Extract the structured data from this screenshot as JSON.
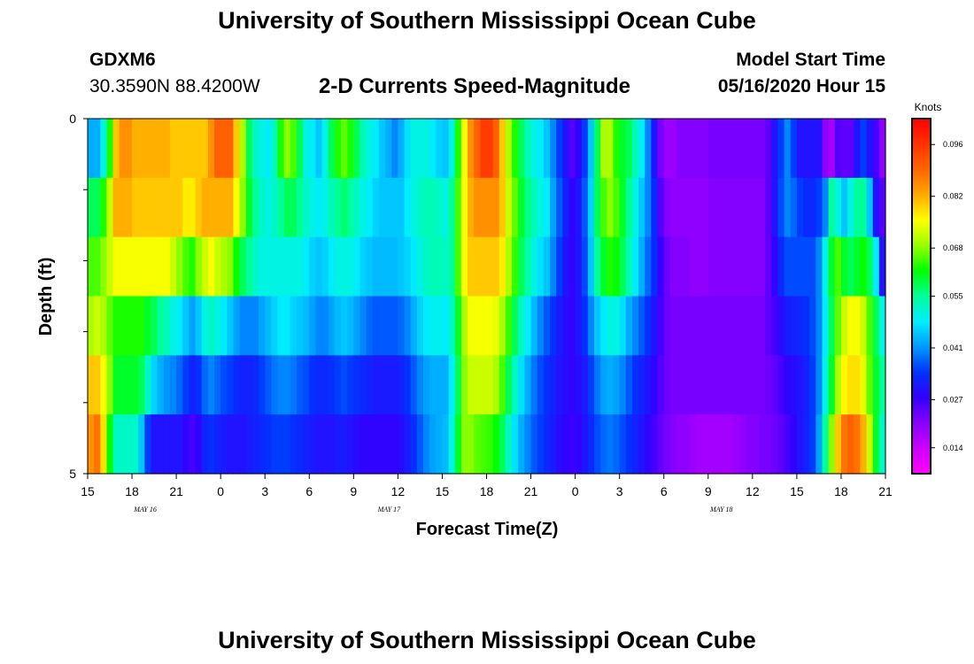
{
  "page": {
    "title_top": "University of Southern Mississippi Ocean Cube",
    "title_bottom": "University of Southern Mississippi Ocean Cube",
    "station_id": "GDXM6",
    "station_coords": "30.3590N 88.4200W",
    "chart_title": "2-D Currents Speed-Magnitude",
    "start_label": "Model Start Time",
    "start_value": "05/16/2020 Hour 15"
  },
  "chart_data": {
    "type": "heatmap",
    "title": "2-D Currents Speed-Magnitude",
    "xlabel": "Forecast Time(Z)",
    "ylabel": "Depth (ft)",
    "x_tick_labels": [
      "15",
      "18",
      "21",
      "0",
      "3",
      "6",
      "9",
      "12",
      "15",
      "18",
      "21",
      "0",
      "3",
      "6",
      "9",
      "12",
      "15",
      "18",
      "21"
    ],
    "x_date_labels": [
      "MAY 16",
      "MAY 17",
      "MAY 18"
    ],
    "x_date_label_tick_index": [
      1.3,
      6.8,
      14.3
    ],
    "xlim_hours": [
      0,
      54
    ],
    "y_tick_labels": [
      "0",
      "5"
    ],
    "ylim": [
      0,
      5
    ],
    "depth_levels": 5,
    "colorbar": {
      "unit": "Knots",
      "range": [
        0.007,
        0.103
      ],
      "labels": [
        "0.096",
        "0.082",
        "0.068",
        "0.055",
        "0.041",
        "0.027",
        "0.014"
      ],
      "label_values": [
        0.096,
        0.082,
        0.068,
        0.055,
        0.041,
        0.027,
        0.014
      ],
      "stops": [
        "#ff00ff",
        "#cc00ff",
        "#8800ff",
        "#3300ff",
        "#0033ff",
        "#0099ff",
        "#00eeff",
        "#00ff99",
        "#00ff00",
        "#99ff00",
        "#ffff00",
        "#ffaa00",
        "#ff6600",
        "#ff3300",
        "#ff0000"
      ]
    },
    "speed_knots": [
      [
        0.043,
        0.043,
        0.05,
        0.063,
        0.08,
        0.085,
        0.085,
        0.082,
        0.082,
        0.082,
        0.082,
        0.082,
        0.082,
        0.08,
        0.08,
        0.08,
        0.08,
        0.08,
        0.08,
        0.085,
        0.09,
        0.09,
        0.09,
        0.08,
        0.07,
        0.058,
        0.052,
        0.05,
        0.048,
        0.053,
        0.063,
        0.068,
        0.065,
        0.058,
        0.05,
        0.048,
        0.045,
        0.05,
        0.058,
        0.063,
        0.066,
        0.063,
        0.058,
        0.053,
        0.05,
        0.048,
        0.045,
        0.043,
        0.04,
        0.043,
        0.047,
        0.05,
        0.05,
        0.05,
        0.048,
        0.046,
        0.045,
        0.05,
        0.063,
        0.075,
        0.085,
        0.09,
        0.095,
        0.095,
        0.09,
        0.08,
        0.07,
        0.063,
        0.058,
        0.053,
        0.05,
        0.048,
        0.045,
        0.04,
        0.035,
        0.03,
        0.025,
        0.028,
        0.035,
        0.045,
        0.058,
        0.07,
        0.07,
        0.063,
        0.06,
        0.058,
        0.053,
        0.048,
        0.04,
        0.03,
        0.022,
        0.019,
        0.019,
        0.021,
        0.021,
        0.021,
        0.021,
        0.021,
        0.022,
        0.022,
        0.022,
        0.022,
        0.022,
        0.022,
        0.022,
        0.022,
        0.022,
        0.024,
        0.03,
        0.035,
        0.04,
        0.035,
        0.03,
        0.03,
        0.03,
        0.03,
        0.02,
        0.018,
        0.025,
        0.024,
        0.024,
        0.03,
        0.035,
        0.03,
        0.026,
        0.02
      ],
      [
        0.058,
        0.058,
        0.063,
        0.072,
        0.082,
        0.082,
        0.082,
        0.08,
        0.08,
        0.08,
        0.08,
        0.08,
        0.08,
        0.08,
        0.08,
        0.077,
        0.077,
        0.08,
        0.082,
        0.082,
        0.082,
        0.082,
        0.082,
        0.075,
        0.068,
        0.06,
        0.055,
        0.052,
        0.05,
        0.052,
        0.055,
        0.058,
        0.058,
        0.055,
        0.052,
        0.05,
        0.048,
        0.05,
        0.053,
        0.055,
        0.057,
        0.055,
        0.052,
        0.05,
        0.048,
        0.046,
        0.045,
        0.045,
        0.045,
        0.045,
        0.048,
        0.05,
        0.052,
        0.053,
        0.053,
        0.052,
        0.05,
        0.055,
        0.065,
        0.075,
        0.082,
        0.085,
        0.085,
        0.085,
        0.085,
        0.08,
        0.072,
        0.066,
        0.06,
        0.056,
        0.053,
        0.05,
        0.048,
        0.042,
        0.037,
        0.032,
        0.028,
        0.03,
        0.037,
        0.046,
        0.058,
        0.065,
        0.068,
        0.065,
        0.06,
        0.055,
        0.05,
        0.045,
        0.04,
        0.033,
        0.025,
        0.021,
        0.02,
        0.02,
        0.02,
        0.02,
        0.02,
        0.02,
        0.021,
        0.021,
        0.021,
        0.021,
        0.021,
        0.021,
        0.021,
        0.021,
        0.021,
        0.024,
        0.03,
        0.036,
        0.04,
        0.038,
        0.035,
        0.033,
        0.033,
        0.035,
        0.04,
        0.055,
        0.05,
        0.045,
        0.05,
        0.055,
        0.055,
        0.045,
        0.03,
        0.025
      ],
      [
        0.065,
        0.065,
        0.068,
        0.072,
        0.075,
        0.075,
        0.075,
        0.075,
        0.075,
        0.075,
        0.075,
        0.075,
        0.075,
        0.072,
        0.068,
        0.065,
        0.063,
        0.068,
        0.072,
        0.075,
        0.072,
        0.07,
        0.068,
        0.062,
        0.058,
        0.055,
        0.052,
        0.05,
        0.05,
        0.05,
        0.05,
        0.05,
        0.05,
        0.05,
        0.048,
        0.046,
        0.045,
        0.046,
        0.048,
        0.05,
        0.05,
        0.05,
        0.048,
        0.046,
        0.045,
        0.044,
        0.044,
        0.044,
        0.044,
        0.045,
        0.046,
        0.048,
        0.05,
        0.052,
        0.053,
        0.053,
        0.052,
        0.055,
        0.065,
        0.075,
        0.08,
        0.08,
        0.08,
        0.08,
        0.08,
        0.077,
        0.07,
        0.064,
        0.058,
        0.054,
        0.05,
        0.047,
        0.045,
        0.04,
        0.035,
        0.03,
        0.028,
        0.03,
        0.036,
        0.045,
        0.055,
        0.06,
        0.063,
        0.062,
        0.058,
        0.053,
        0.048,
        0.043,
        0.038,
        0.033,
        0.027,
        0.023,
        0.021,
        0.021,
        0.021,
        0.02,
        0.02,
        0.02,
        0.021,
        0.021,
        0.021,
        0.021,
        0.021,
        0.021,
        0.021,
        0.021,
        0.021,
        0.024,
        0.028,
        0.033,
        0.036,
        0.036,
        0.036,
        0.036,
        0.036,
        0.04,
        0.05,
        0.06,
        0.065,
        0.06,
        0.058,
        0.06,
        0.062,
        0.058,
        0.048,
        0.03
      ],
      [
        0.07,
        0.072,
        0.07,
        0.066,
        0.063,
        0.063,
        0.063,
        0.063,
        0.063,
        0.06,
        0.058,
        0.055,
        0.053,
        0.05,
        0.048,
        0.045,
        0.042,
        0.045,
        0.05,
        0.052,
        0.05,
        0.048,
        0.045,
        0.042,
        0.04,
        0.04,
        0.04,
        0.042,
        0.044,
        0.046,
        0.048,
        0.048,
        0.046,
        0.045,
        0.044,
        0.042,
        0.04,
        0.04,
        0.042,
        0.044,
        0.045,
        0.044,
        0.042,
        0.04,
        0.038,
        0.037,
        0.037,
        0.037,
        0.037,
        0.038,
        0.04,
        0.043,
        0.046,
        0.048,
        0.049,
        0.049,
        0.048,
        0.052,
        0.06,
        0.07,
        0.075,
        0.075,
        0.075,
        0.075,
        0.074,
        0.07,
        0.064,
        0.058,
        0.052,
        0.048,
        0.044,
        0.04,
        0.037,
        0.034,
        0.031,
        0.029,
        0.028,
        0.03,
        0.034,
        0.04,
        0.045,
        0.048,
        0.05,
        0.05,
        0.047,
        0.043,
        0.04,
        0.037,
        0.034,
        0.03,
        0.026,
        0.023,
        0.022,
        0.022,
        0.022,
        0.022,
        0.022,
        0.022,
        0.022,
        0.022,
        0.022,
        0.022,
        0.022,
        0.022,
        0.022,
        0.022,
        0.022,
        0.024,
        0.026,
        0.029,
        0.031,
        0.032,
        0.033,
        0.034,
        0.036,
        0.04,
        0.048,
        0.058,
        0.066,
        0.072,
        0.075,
        0.075,
        0.072,
        0.065,
        0.058,
        0.05
      ],
      [
        0.08,
        0.08,
        0.075,
        0.068,
        0.06,
        0.06,
        0.06,
        0.06,
        0.058,
        0.052,
        0.046,
        0.043,
        0.041,
        0.04,
        0.038,
        0.035,
        0.032,
        0.034,
        0.038,
        0.04,
        0.038,
        0.036,
        0.035,
        0.033,
        0.032,
        0.032,
        0.033,
        0.035,
        0.037,
        0.039,
        0.04,
        0.04,
        0.039,
        0.037,
        0.036,
        0.034,
        0.033,
        0.033,
        0.034,
        0.035,
        0.036,
        0.035,
        0.034,
        0.033,
        0.032,
        0.031,
        0.031,
        0.031,
        0.031,
        0.032,
        0.034,
        0.037,
        0.04,
        0.042,
        0.043,
        0.043,
        0.043,
        0.048,
        0.058,
        0.068,
        0.072,
        0.072,
        0.072,
        0.072,
        0.07,
        0.065,
        0.058,
        0.052,
        0.047,
        0.043,
        0.039,
        0.036,
        0.034,
        0.032,
        0.03,
        0.029,
        0.028,
        0.029,
        0.031,
        0.035,
        0.039,
        0.042,
        0.043,
        0.042,
        0.04,
        0.037,
        0.034,
        0.032,
        0.03,
        0.028,
        0.025,
        0.023,
        0.022,
        0.022,
        0.022,
        0.022,
        0.022,
        0.022,
        0.022,
        0.022,
        0.022,
        0.022,
        0.022,
        0.022,
        0.022,
        0.022,
        0.022,
        0.023,
        0.024,
        0.026,
        0.028,
        0.029,
        0.03,
        0.032,
        0.035,
        0.04,
        0.05,
        0.06,
        0.07,
        0.076,
        0.078,
        0.078,
        0.074,
        0.066,
        0.06,
        0.055
      ],
      [
        0.085,
        0.088,
        0.078,
        0.062,
        0.052,
        0.052,
        0.052,
        0.052,
        0.045,
        0.035,
        0.03,
        0.03,
        0.03,
        0.03,
        0.03,
        0.028,
        0.026,
        0.028,
        0.032,
        0.034,
        0.032,
        0.031,
        0.03,
        0.03,
        0.03,
        0.031,
        0.032,
        0.033,
        0.034,
        0.035,
        0.035,
        0.035,
        0.034,
        0.033,
        0.032,
        0.031,
        0.03,
        0.03,
        0.03,
        0.031,
        0.031,
        0.03,
        0.029,
        0.028,
        0.028,
        0.028,
        0.028,
        0.028,
        0.028,
        0.029,
        0.031,
        0.034,
        0.037,
        0.04,
        0.042,
        0.043,
        0.044,
        0.05,
        0.06,
        0.068,
        0.068,
        0.066,
        0.065,
        0.064,
        0.062,
        0.058,
        0.052,
        0.047,
        0.043,
        0.04,
        0.037,
        0.035,
        0.033,
        0.031,
        0.029,
        0.028,
        0.027,
        0.028,
        0.03,
        0.033,
        0.036,
        0.038,
        0.039,
        0.038,
        0.036,
        0.034,
        0.032,
        0.03,
        0.028,
        0.026,
        0.024,
        0.022,
        0.021,
        0.02,
        0.02,
        0.019,
        0.018,
        0.018,
        0.018,
        0.018,
        0.018,
        0.018,
        0.019,
        0.02,
        0.021,
        0.021,
        0.022,
        0.022,
        0.023,
        0.024,
        0.026,
        0.028,
        0.03,
        0.032,
        0.035,
        0.042,
        0.055,
        0.068,
        0.08,
        0.088,
        0.09,
        0.088,
        0.082,
        0.072,
        0.06,
        0.052
      ]
    ]
  }
}
